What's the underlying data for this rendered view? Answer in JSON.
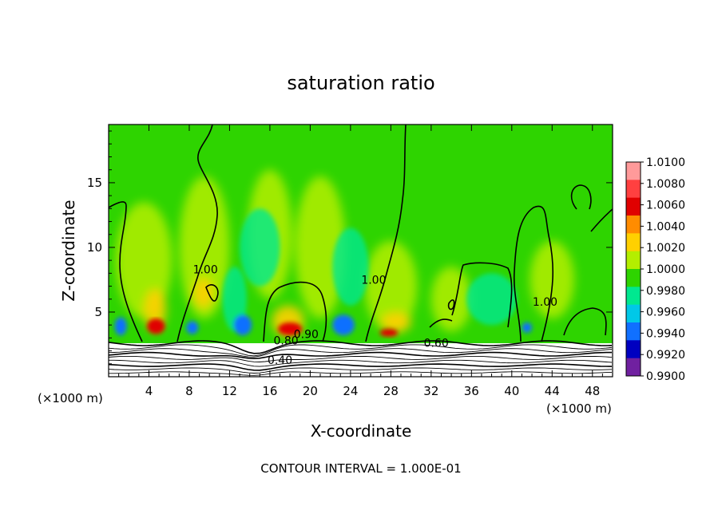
{
  "chart_data": {
    "type": "heatmap",
    "title": "saturation ratio",
    "xlabel": "X-coordinate",
    "ylabel": "Z-coordinate",
    "x_unit_left": "(×1000 m)",
    "x_unit_right": "(×1000 m)",
    "footer": "CONTOUR INTERVAL = 1.000E-01",
    "xlim": [
      0,
      50
    ],
    "ylim": [
      0,
      19.5
    ],
    "x_ticks": [
      "4",
      "8",
      "12",
      "16",
      "20",
      "24",
      "28",
      "32",
      "36",
      "40",
      "44",
      "48"
    ],
    "x_tick_values": [
      4,
      8,
      12,
      16,
      20,
      24,
      28,
      32,
      36,
      40,
      44,
      48
    ],
    "y_ticks": [
      "5",
      "10",
      "15"
    ],
    "y_tick_values": [
      5,
      10,
      15
    ],
    "colorbar": {
      "labels": [
        "1.0100",
        "1.0080",
        "1.0060",
        "1.0040",
        "1.0020",
        "1.0000",
        "0.9980",
        "0.9960",
        "0.9940",
        "0.9920",
        "0.9900"
      ],
      "colors": [
        "#ff9a9a",
        "#ff4040",
        "#e00000",
        "#ff8c00",
        "#ffd000",
        "#b4ee00",
        "#2ed400",
        "#00e890",
        "#00c8e8",
        "#1070ff",
        "#0000c0",
        "#7020a0"
      ]
    },
    "field_colors": {
      "background": "#2ed400",
      "moist_plume": "#b4ee00",
      "warm_core": "#ffd000",
      "peak": "#e00000",
      "dry_pocket": "#00e890",
      "dry_core": "#1070ff"
    },
    "contour_labels": [
      {
        "text": "1.00",
        "x": 9.6,
        "z": 8.0
      },
      {
        "text": "1.00",
        "x": 26.3,
        "z": 7.2
      },
      {
        "text": "1.00",
        "x": 43.3,
        "z": 5.5
      },
      {
        "text": "0.80",
        "x": 17.6,
        "z": 2.5
      },
      {
        "text": "0.90",
        "x": 19.6,
        "z": 3.0
      },
      {
        "text": "0.60",
        "x": 32.5,
        "z": 2.3
      },
      {
        "text": "0.40",
        "x": 17.0,
        "z": 1.0
      }
    ]
  }
}
